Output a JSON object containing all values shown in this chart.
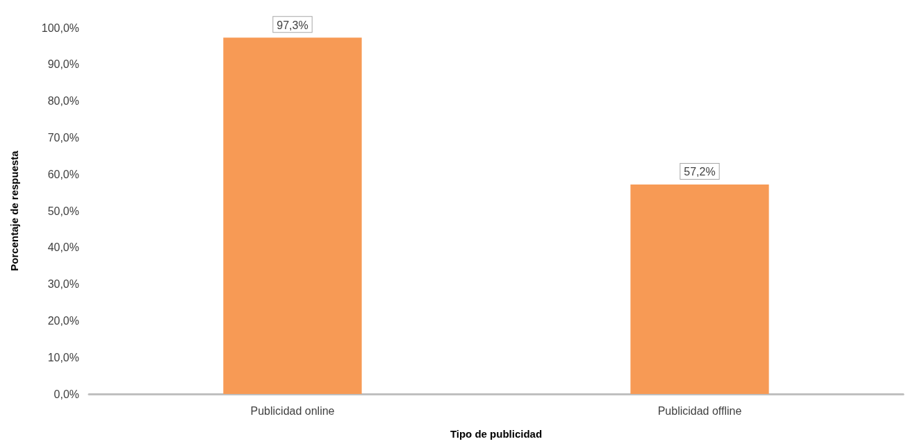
{
  "chart_data": {
    "type": "bar",
    "xlabel": "Tipo de publicidad",
    "ylabel": "Porcentaje de respuesta",
    "categories": [
      "Publicidad online",
      "Publicidad offline"
    ],
    "values": [
      97.3,
      57.2
    ],
    "value_labels": [
      "97,3%",
      "57,2%"
    ],
    "color": "#f79a55",
    "ylim": [
      0,
      100
    ],
    "yticks": [
      {
        "value": 0,
        "label": "0,0%"
      },
      {
        "value": 10,
        "label": "10,0%"
      },
      {
        "value": 20,
        "label": "20,0%"
      },
      {
        "value": 30,
        "label": "30,0%"
      },
      {
        "value": 40,
        "label": "40,0%"
      },
      {
        "value": 50,
        "label": "50,0%"
      },
      {
        "value": 60,
        "label": "60,0%"
      },
      {
        "value": 70,
        "label": "70,0%"
      },
      {
        "value": 80,
        "label": "80,0%"
      },
      {
        "value": 90,
        "label": "90,0%"
      },
      {
        "value": 100,
        "label": "100,0%"
      }
    ],
    "grid": false
  }
}
